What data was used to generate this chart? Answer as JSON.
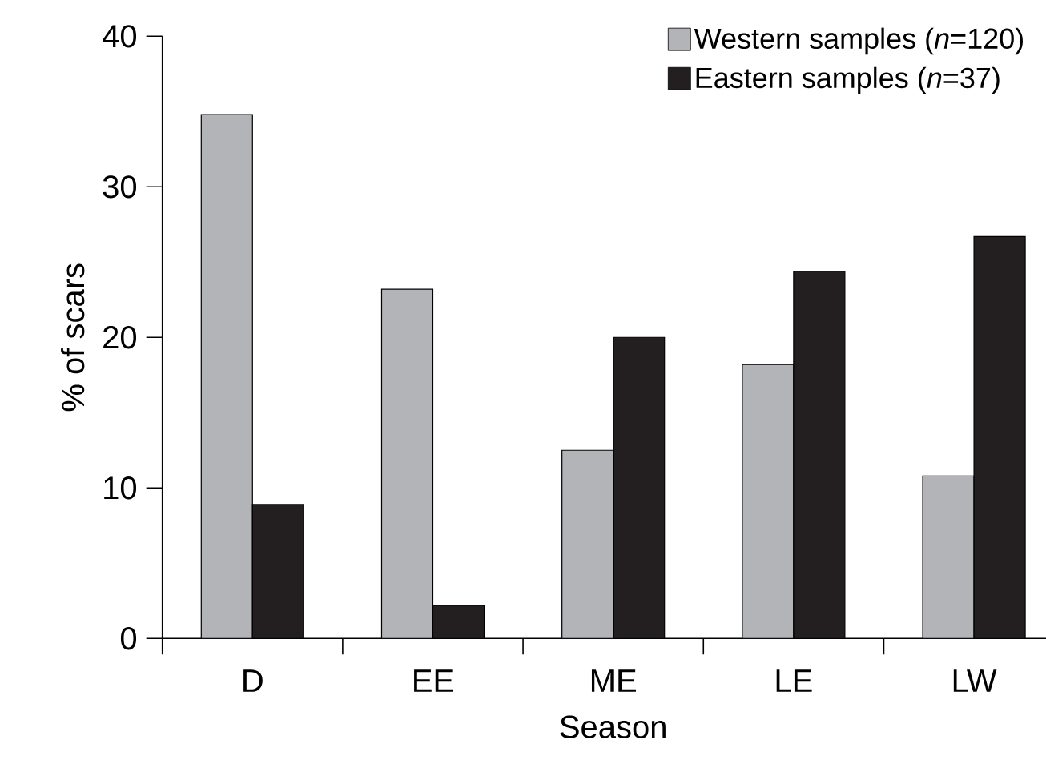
{
  "chart_data": {
    "type": "bar",
    "xlabel": "Season",
    "ylabel": "% of scars",
    "categories": [
      "D",
      "EE",
      "ME",
      "LE",
      "LW"
    ],
    "series": [
      {
        "name": "Western samples (*n*=120)",
        "color": "#b3b4b8",
        "values": [
          34.8,
          23.2,
          12.5,
          18.2,
          10.8
        ]
      },
      {
        "name": "Eastern samples (*n*=37)",
        "color": "#231f20",
        "values": [
          8.9,
          2.2,
          20.0,
          24.4,
          26.7
        ]
      }
    ],
    "ylim": [
      0,
      40
    ],
    "yticks": [
      0,
      10,
      20,
      30,
      40
    ],
    "legend": "top right"
  }
}
